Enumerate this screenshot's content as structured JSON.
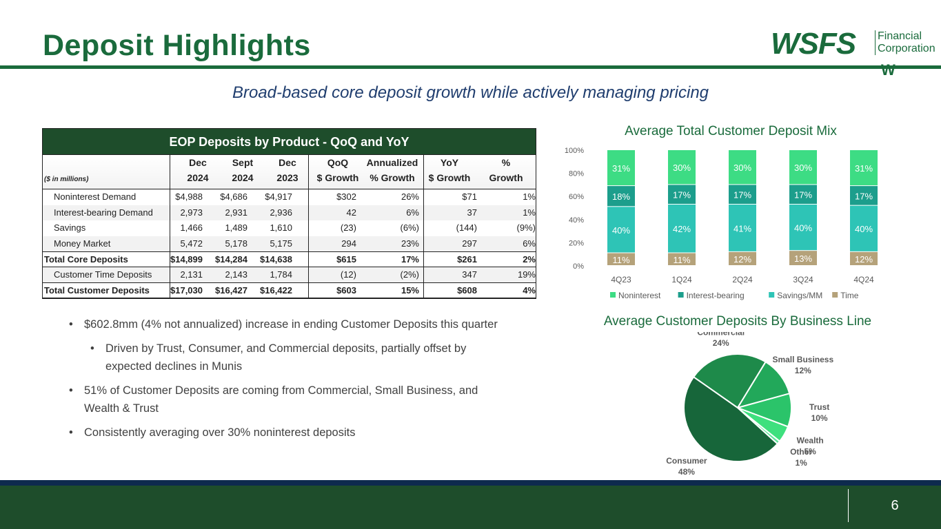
{
  "header": {
    "title": "Deposit Highlights",
    "subtitle": "Broad-based core deposit growth while actively managing pricing"
  },
  "logo": {
    "main": "WSFS",
    "line1": "Financial",
    "line2": "Corporation",
    "mark": "W"
  },
  "table": {
    "title": "EOP Deposits by Product - QoQ and YoY",
    "units": "($ in millions)",
    "columns": [
      {
        "line1": "Dec",
        "line2": "2024"
      },
      {
        "line1": "Sept",
        "line2": "2024"
      },
      {
        "line1": "Dec",
        "line2": "2023"
      },
      {
        "line1": "QoQ",
        "line2": "$ Growth"
      },
      {
        "line1": "Annualized",
        "line2": "% Growth"
      },
      {
        "line1": "YoY",
        "line2": "$ Growth"
      },
      {
        "line1": "%",
        "line2": "Growth"
      }
    ],
    "rows": [
      {
        "label": "Noninterest Demand",
        "values": [
          "$4,988",
          "$4,686",
          "$4,917",
          "$302",
          "26%",
          "$71",
          "1%"
        ]
      },
      {
        "label": "Interest-bearing Demand",
        "values": [
          "2,973",
          "2,931",
          "2,936",
          "42",
          "6%",
          "37",
          "1%"
        ]
      },
      {
        "label": "Savings",
        "values": [
          "1,466",
          "1,489",
          "1,610",
          "(23)",
          "(6%)",
          "(144)",
          "(9%)"
        ]
      },
      {
        "label": "Money Market",
        "values": [
          "5,472",
          "5,178",
          "5,175",
          "294",
          "23%",
          "297",
          "6%"
        ]
      },
      {
        "label": "Total Core Deposits",
        "values": [
          "$14,899",
          "$14,284",
          "$14,638",
          "$615",
          "17%",
          "$261",
          "2%"
        ]
      },
      {
        "label": "Customer Time Deposits",
        "values": [
          "2,131",
          "2,143",
          "1,784",
          "(12)",
          "(2%)",
          "347",
          "19%"
        ]
      },
      {
        "label": "Total Customer Deposits",
        "values": [
          "$17,030",
          "$16,427",
          "$16,422",
          "$603",
          "15%",
          "$608",
          "4%"
        ]
      }
    ]
  },
  "bullets": {
    "b1": "$602.8mm (4% not annualized) increase in ending Customer Deposits this quarter",
    "b1_sub": "Driven by Trust, Consumer, and Commercial deposits, partially offset by expected declines in Munis",
    "b2": "51% of Customer Deposits are coming from Commercial, Small Business, and Wealth & Trust",
    "b3": "Consistently averaging over 30% noninterest deposits"
  },
  "chart_data": [
    {
      "type": "bar",
      "stacked": true,
      "title": "Average Total Customer Deposit Mix",
      "categories": [
        "4Q23",
        "1Q24",
        "2Q24",
        "3Q24",
        "4Q24"
      ],
      "series": [
        {
          "name": "Time",
          "values": [
            11,
            11,
            12,
            13,
            12
          ],
          "color": "#b5a27a"
        },
        {
          "name": "Savings/MM",
          "values": [
            40,
            42,
            41,
            40,
            40
          ],
          "color": "#2ec4b6"
        },
        {
          "name": "Interest-bearing",
          "values": [
            18,
            17,
            17,
            17,
            17
          ],
          "color": "#1c9e8c"
        },
        {
          "name": "Noninterest",
          "values": [
            31,
            30,
            30,
            30,
            31
          ],
          "color": "#3ddc84"
        }
      ],
      "legend_order": [
        "Noninterest",
        "Interest-bearing",
        "Savings/MM",
        "Time"
      ],
      "yticks": [
        "0%",
        "20%",
        "40%",
        "60%",
        "80%",
        "100%"
      ],
      "ylim": [
        0,
        100
      ],
      "legend": "bottom"
    },
    {
      "type": "pie",
      "title": "Average Customer Deposits By Business Line",
      "slices": [
        {
          "label": "Commercial",
          "value": 24,
          "display": "24%",
          "color": "#1e8a4a"
        },
        {
          "label": "Small Business",
          "value": 12,
          "display": "12%",
          "color": "#22a85a"
        },
        {
          "label": "Trust",
          "value": 10,
          "display": "10%",
          "color": "#2bc46a"
        },
        {
          "label": "Wealth",
          "value": 5,
          "display": "5%",
          "color": "#3ee07e"
        },
        {
          "label": "Other",
          "value": 1,
          "display": "1%",
          "color": "#5de69a"
        },
        {
          "label": "Consumer",
          "value": 48,
          "display": "48%",
          "color": "#17663a"
        }
      ]
    }
  ],
  "footer": {
    "page": "6"
  }
}
